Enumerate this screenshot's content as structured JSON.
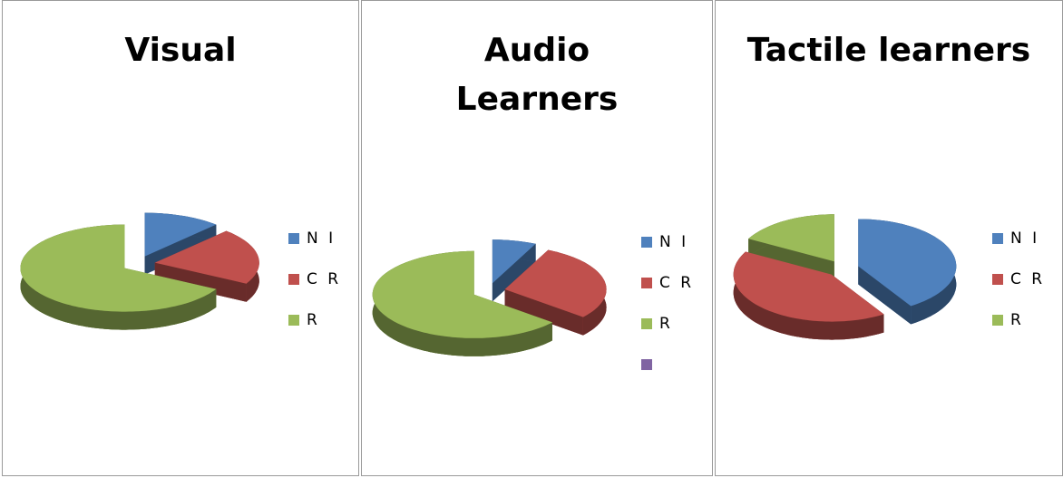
{
  "chart_data": [
    {
      "type": "pie3d",
      "title": "Visual",
      "categories": [
        "N I",
        "C R",
        "R"
      ],
      "values": [
        12,
        21,
        67
      ],
      "colors": [
        "#4f81bd",
        "#c0504d",
        "#9bbb59"
      ]
    },
    {
      "type": "pie3d",
      "title": "Audio Learners",
      "categories": [
        "N I",
        "C R",
        "R",
        null
      ],
      "values": [
        7,
        29,
        64,
        0
      ],
      "colors": [
        "#4f81bd",
        "#c0504d",
        "#9bbb59",
        "#8064a2"
      ]
    },
    {
      "type": "pie3d",
      "title": "Tactile learners",
      "categories": [
        "N I",
        "C R",
        "R"
      ],
      "values": [
        41,
        42,
        17
      ],
      "colors": [
        "#4f81bd",
        "#c0504d",
        "#9bbb59"
      ]
    }
  ]
}
